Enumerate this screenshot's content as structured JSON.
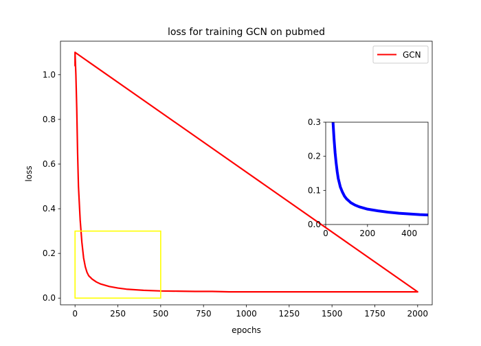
{
  "chart_data": [
    {
      "type": "line",
      "title": "loss for training GCN on pubmed",
      "xlabel": "epochs",
      "ylabel": "loss",
      "xlim": [
        -85,
        2085
      ],
      "ylim": [
        -0.03,
        1.15
      ],
      "xticks": [
        0,
        250,
        500,
        750,
        1000,
        1250,
        1500,
        1750,
        2000
      ],
      "yticks": [
        0.0,
        0.2,
        0.4,
        0.6,
        0.8,
        1.0
      ],
      "xtick_labels": [
        "0",
        "250",
        "500",
        "750",
        "1000",
        "1250",
        "1500",
        "1750",
        "2000"
      ],
      "ytick_labels": [
        "0.0",
        "0.2",
        "0.4",
        "0.6",
        "0.8",
        "1.0"
      ],
      "legend": {
        "position": "top-right",
        "entries": [
          "GCN"
        ]
      },
      "series": [
        {
          "name": "GCN",
          "color": "#ff0000",
          "x": [
            0,
            5,
            10,
            15,
            20,
            30,
            40,
            50,
            60,
            70,
            80,
            100,
            125,
            150,
            200,
            250,
            300,
            400,
            500,
            600,
            700,
            800,
            900,
            1000,
            1250,
            1500,
            1750,
            2000,
            2000,
            0,
            0
          ],
          "y": [
            1.1,
            1.0,
            0.85,
            0.65,
            0.5,
            0.35,
            0.25,
            0.18,
            0.14,
            0.115,
            0.1,
            0.085,
            0.072,
            0.063,
            0.052,
            0.045,
            0.04,
            0.035,
            0.032,
            0.031,
            0.03,
            0.03,
            0.028,
            0.028,
            0.028,
            0.028,
            0.028,
            0.028,
            0.028,
            1.1,
            1.04
          ]
        }
      ],
      "annotations": [
        {
          "type": "rectangle",
          "color": "#ffff00",
          "x0": 0,
          "x1": 500,
          "y0": 0,
          "y1": 0.3
        }
      ]
    },
    {
      "type": "line",
      "title": "",
      "xlabel": "",
      "ylabel": "",
      "xlim": [
        0,
        490
      ],
      "ylim": [
        0,
        0.3
      ],
      "xticks": [
        0,
        200,
        400
      ],
      "yticks": [
        0.0,
        0.1,
        0.2,
        0.3
      ],
      "xtick_labels": [
        "0",
        "200",
        "400"
      ],
      "ytick_labels": [
        "0.0",
        "0.1",
        "0.2",
        "0.3"
      ],
      "series": [
        {
          "color": "#0000ff",
          "x": [
            35,
            40,
            45,
            50,
            55,
            60,
            70,
            80,
            90,
            100,
            120,
            140,
            160,
            200,
            250,
            300,
            350,
            400,
            450,
            490
          ],
          "y": [
            0.3,
            0.25,
            0.21,
            0.18,
            0.155,
            0.135,
            0.11,
            0.095,
            0.083,
            0.075,
            0.064,
            0.057,
            0.052,
            0.045,
            0.04,
            0.036,
            0.033,
            0.031,
            0.029,
            0.028
          ]
        }
      ]
    }
  ]
}
